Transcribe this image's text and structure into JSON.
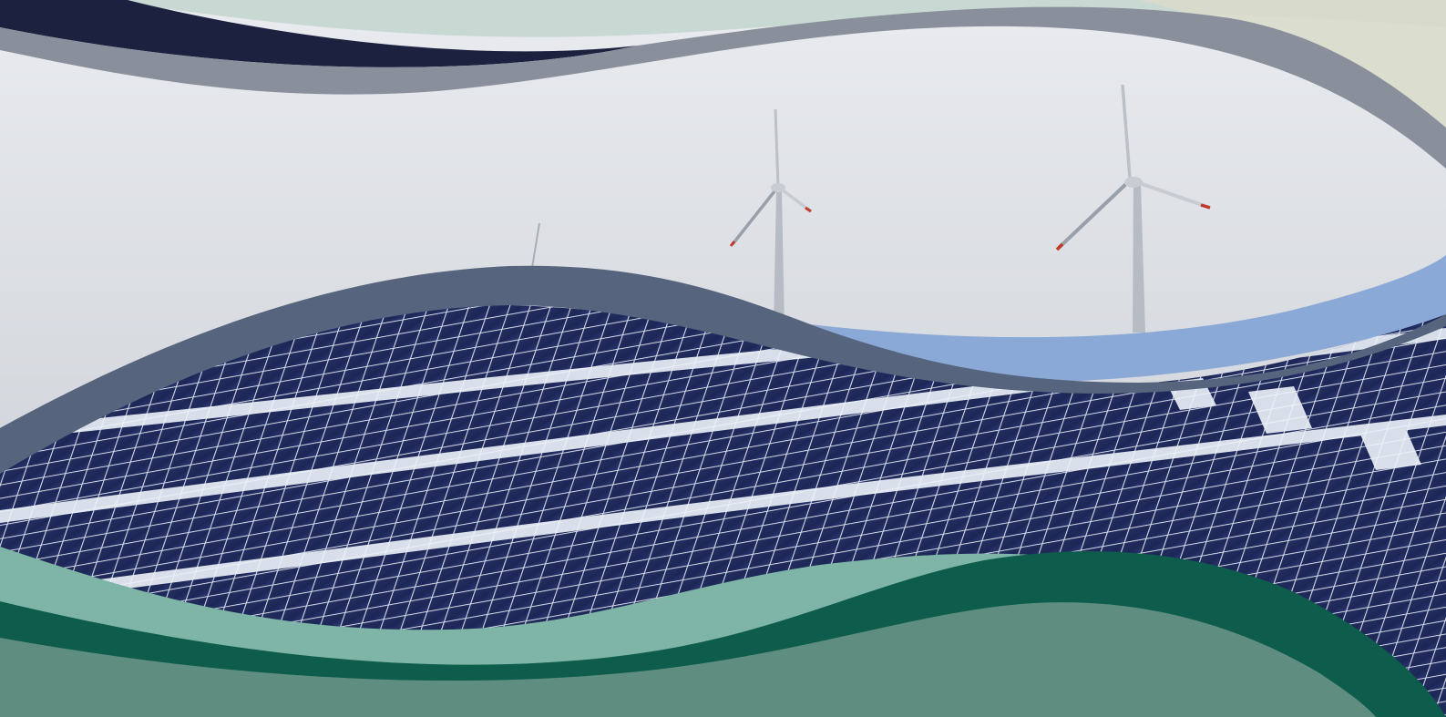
{
  "scene": {
    "subject": "renewable-energy-cover",
    "icons": [
      "wind-turbine-icon",
      "solar-panel-icon"
    ],
    "colors": {
      "sky_top": "#e6e8ec",
      "sky_bottom": "#c8ccd3",
      "top_band_light": "#c9d9d4",
      "top_band_navy": "#1c2140",
      "top_band_gray": "#8a8f9c",
      "mid_band_slate": "#56657d",
      "mid_band_blue": "#8ba9d6",
      "panel_navy": "#1f2a5e",
      "panel_grid": "#d8dde8",
      "snow": "#eef3fa",
      "bottom_band_light": "#7fb5a6",
      "bottom_band_dark": "#0e5c4c",
      "bottom_band_mid": "#5f8e80",
      "turbine": "#b7bcc4",
      "blade_tip": "#c0392b"
    }
  }
}
